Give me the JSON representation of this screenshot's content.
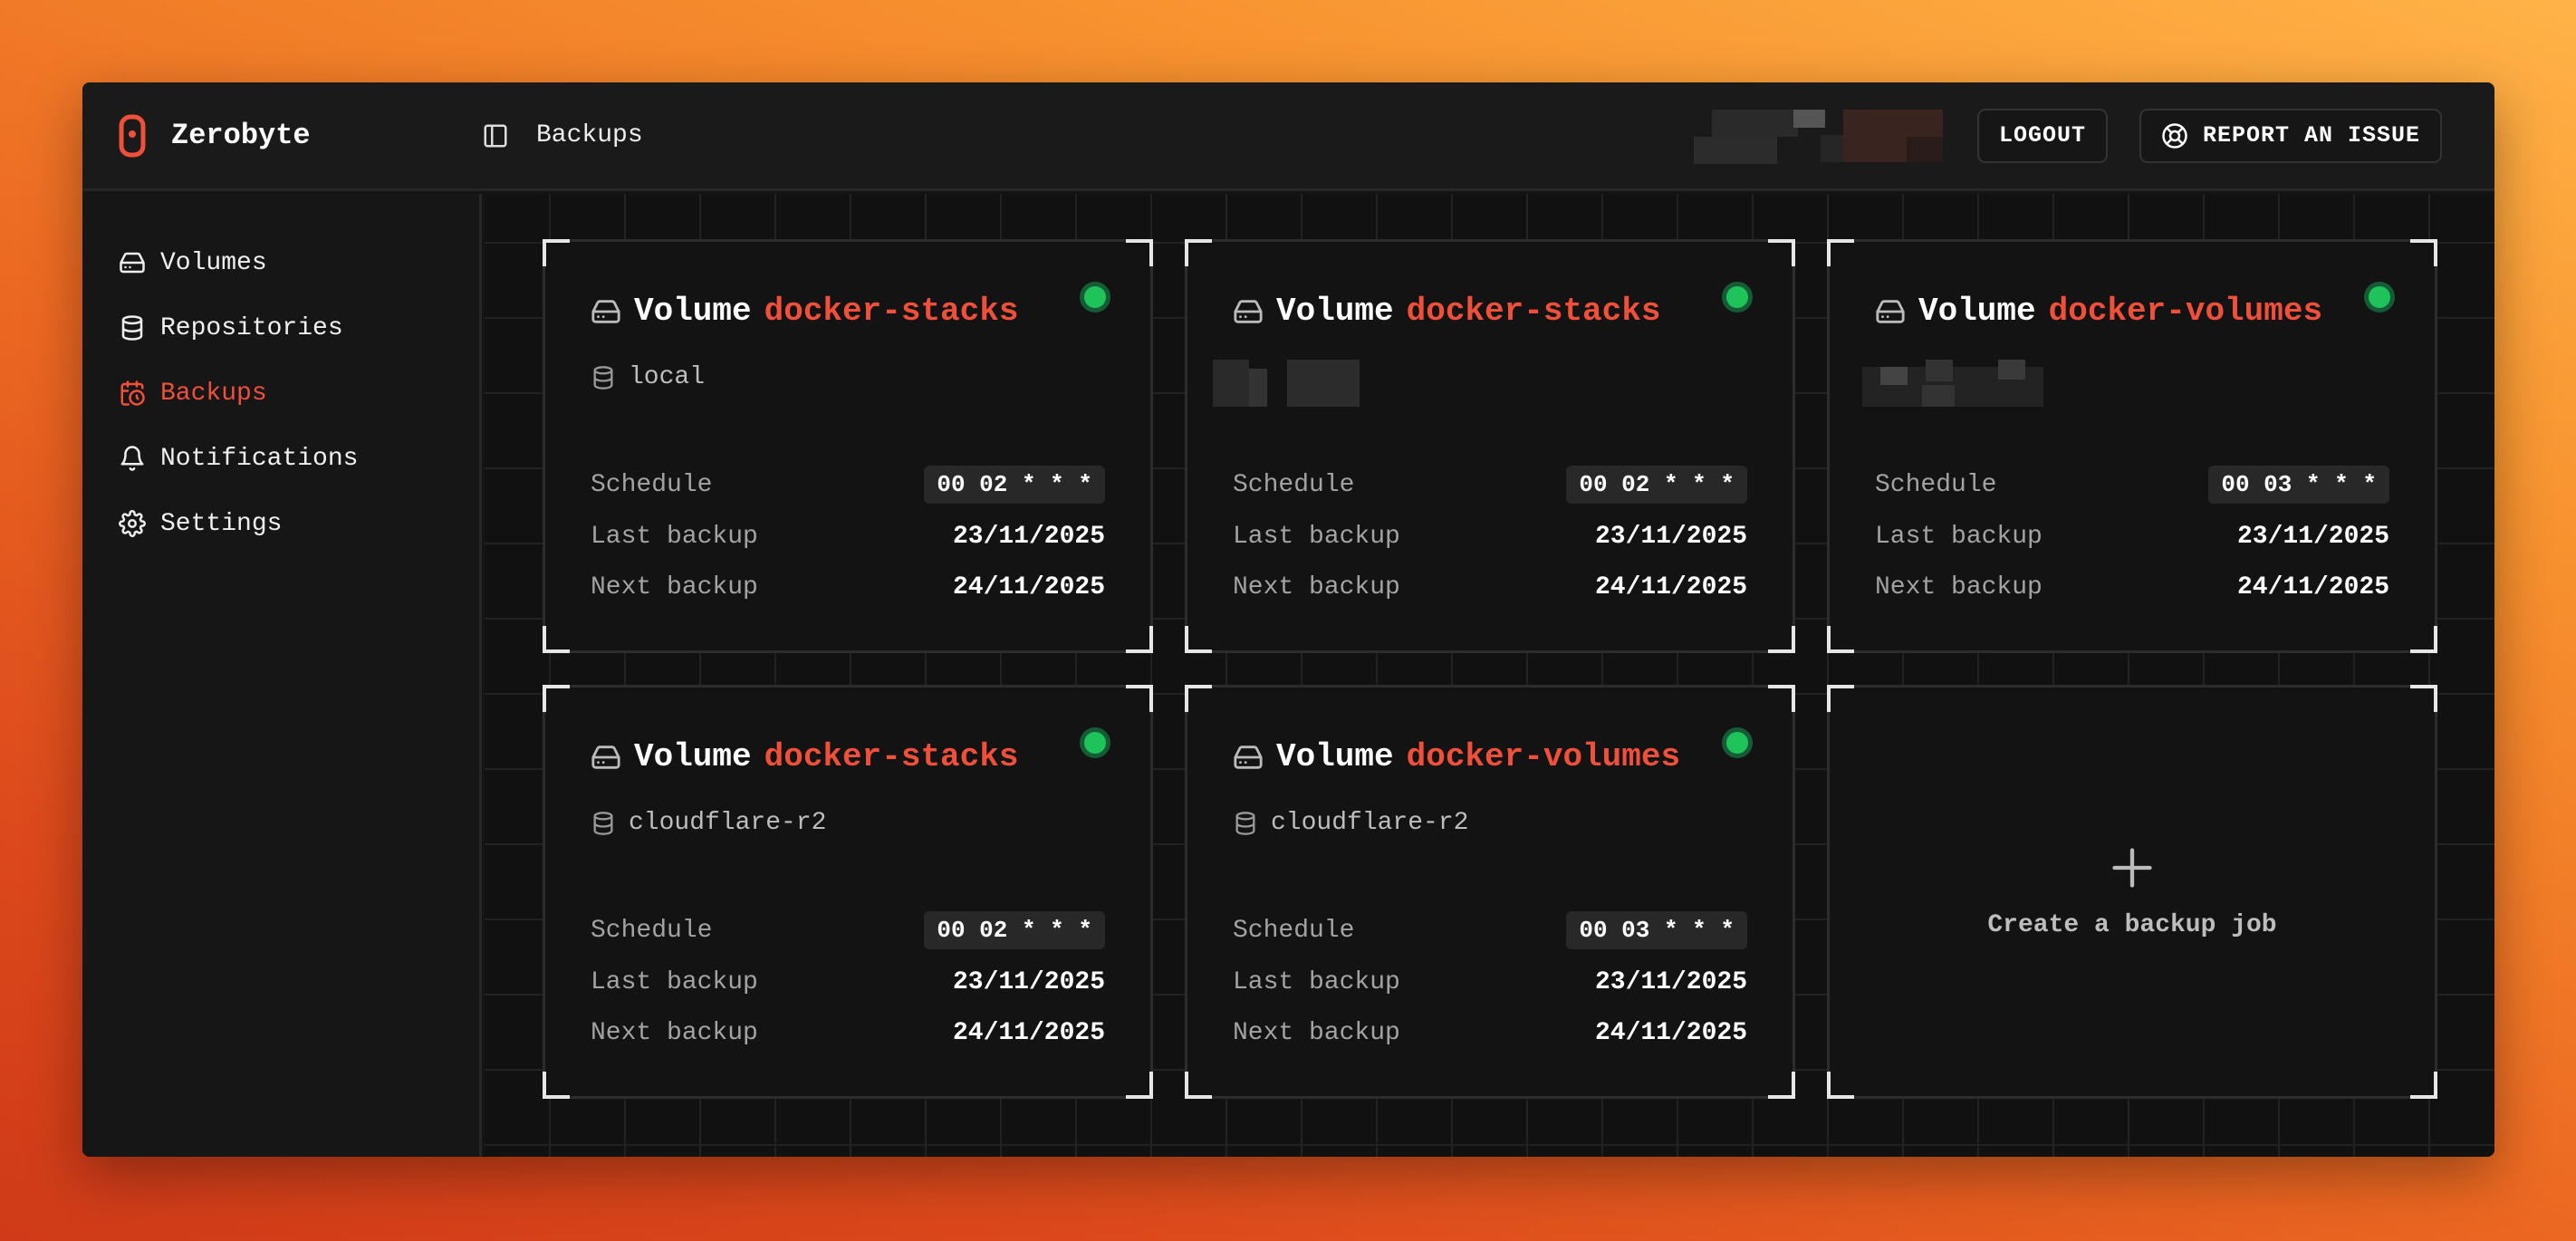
{
  "app": {
    "name": "Zerobyte",
    "accent": "#f0503a"
  },
  "header": {
    "breadcrumb": "Backups",
    "logout": "LOGOUT",
    "report": "REPORT AN ISSUE"
  },
  "sidebar": {
    "items": [
      {
        "label": "Volumes",
        "icon": "hard-drive-icon",
        "active": false
      },
      {
        "label": "Repositories",
        "icon": "database-icon",
        "active": false
      },
      {
        "label": "Backups",
        "icon": "calendar-clock-icon",
        "active": true
      },
      {
        "label": "Notifications",
        "icon": "bell-icon",
        "active": false
      },
      {
        "label": "Settings",
        "icon": "gear-icon",
        "active": false
      }
    ]
  },
  "labels": {
    "volume": "Volume",
    "schedule": "Schedule",
    "last": "Last backup",
    "next": "Next backup",
    "create": "Create a backup job"
  },
  "jobs": [
    {
      "volume": "docker-stacks",
      "repository": "local",
      "schedule": "00 02 * * *",
      "last": "23/11/2025",
      "next": "24/11/2025",
      "status": "active"
    },
    {
      "volume": "docker-stacks",
      "repository": null,
      "schedule": "00 02 * * *",
      "last": "23/11/2025",
      "next": "24/11/2025",
      "status": "active"
    },
    {
      "volume": "docker-volumes",
      "repository": null,
      "schedule": "00 03 * * *",
      "last": "23/11/2025",
      "next": "24/11/2025",
      "status": "active"
    },
    {
      "volume": "docker-stacks",
      "repository": "cloudflare-r2",
      "schedule": "00 02 * * *",
      "last": "23/11/2025",
      "next": "24/11/2025",
      "status": "active"
    },
    {
      "volume": "docker-volumes",
      "repository": "cloudflare-r2",
      "schedule": "00 03 * * *",
      "last": "23/11/2025",
      "next": "24/11/2025",
      "status": "active"
    }
  ]
}
